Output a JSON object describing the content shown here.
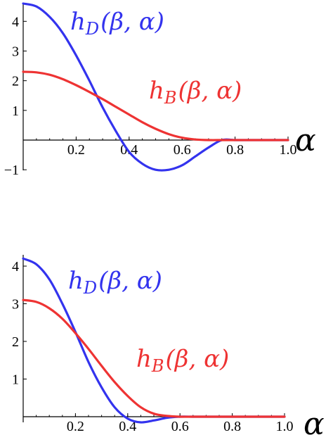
{
  "chart_data": [
    {
      "type": "line",
      "xlabel": "α",
      "ylabel": "",
      "xlim": [
        0,
        1.0
      ],
      "ylim": [
        -1,
        4.6
      ],
      "x_ticks": [
        "0.2",
        "0.4",
        "0.6",
        "0.8",
        "1.0"
      ],
      "y_ticks": [
        "−1",
        "1",
        "2",
        "3",
        "4"
      ],
      "grid": false,
      "series": [
        {
          "name": "h_D(β,α)",
          "label_main": "h",
          "label_sub": "D",
          "label_args": "(β, α)",
          "color": "#3333ee",
          "x": [
            0,
            0.05,
            0.1,
            0.15,
            0.2,
            0.25,
            0.3,
            0.35,
            0.4,
            0.45,
            0.5,
            0.55,
            0.6,
            0.65,
            0.7,
            0.75,
            0.8,
            0.85,
            0.9,
            0.95,
            1.0
          ],
          "y": [
            4.6,
            4.5,
            4.15,
            3.6,
            2.85,
            2.0,
            1.1,
            0.3,
            -0.4,
            -0.8,
            -1.0,
            -1.0,
            -0.85,
            -0.55,
            -0.25,
            0.0,
            0.0,
            0.0,
            0.0,
            0.0,
            0.0
          ]
        },
        {
          "name": "h_B(β,α)",
          "label_main": "h",
          "label_sub": "B",
          "label_args": "(β, α)",
          "color": "#ee3333",
          "x": [
            0,
            0.05,
            0.1,
            0.15,
            0.2,
            0.25,
            0.3,
            0.35,
            0.4,
            0.45,
            0.5,
            0.55,
            0.6,
            0.65,
            0.7,
            0.75,
            0.8,
            0.85,
            0.9,
            0.95,
            1.0
          ],
          "y": [
            2.3,
            2.28,
            2.2,
            2.05,
            1.85,
            1.62,
            1.38,
            1.12,
            0.86,
            0.6,
            0.38,
            0.2,
            0.08,
            0.02,
            0.0,
            0.0,
            0.0,
            0.0,
            0.0,
            0.0,
            0.0
          ]
        }
      ]
    },
    {
      "type": "line",
      "xlabel": "α",
      "ylabel": "",
      "xlim": [
        0,
        1.0
      ],
      "ylim": [
        -0.15,
        4.3
      ],
      "x_ticks": [
        "0.2",
        "0.4",
        "0.6",
        "0.8",
        "1.0"
      ],
      "y_ticks": [
        "1",
        "2",
        "3",
        "4"
      ],
      "grid": false,
      "series": [
        {
          "name": "h_D(β,α)",
          "label_main": "h",
          "label_sub": "D",
          "label_args": "(β, α)",
          "color": "#3333ee",
          "x": [
            0,
            0.05,
            0.1,
            0.15,
            0.2,
            0.25,
            0.3,
            0.35,
            0.4,
            0.45,
            0.5,
            0.55,
            0.6,
            0.65,
            0.7,
            0.8,
            0.9,
            1.0
          ],
          "y": [
            4.2,
            4.05,
            3.65,
            3.0,
            2.25,
            1.45,
            0.78,
            0.25,
            -0.05,
            -0.15,
            -0.1,
            -0.03,
            0.0,
            0.0,
            0.0,
            0.0,
            0.0,
            0.0
          ]
        },
        {
          "name": "h_B(β,α)",
          "label_main": "h",
          "label_sub": "B",
          "label_args": "(β, α)",
          "color": "#ee3333",
          "x": [
            0,
            0.05,
            0.1,
            0.15,
            0.2,
            0.25,
            0.3,
            0.35,
            0.4,
            0.45,
            0.5,
            0.55,
            0.6,
            0.65,
            0.7,
            0.8,
            0.9,
            1.0
          ],
          "y": [
            3.1,
            3.05,
            2.88,
            2.6,
            2.22,
            1.8,
            1.35,
            0.92,
            0.55,
            0.25,
            0.08,
            0.02,
            0.0,
            0.0,
            0.0,
            0.0,
            0.0,
            0.0
          ]
        }
      ]
    }
  ]
}
